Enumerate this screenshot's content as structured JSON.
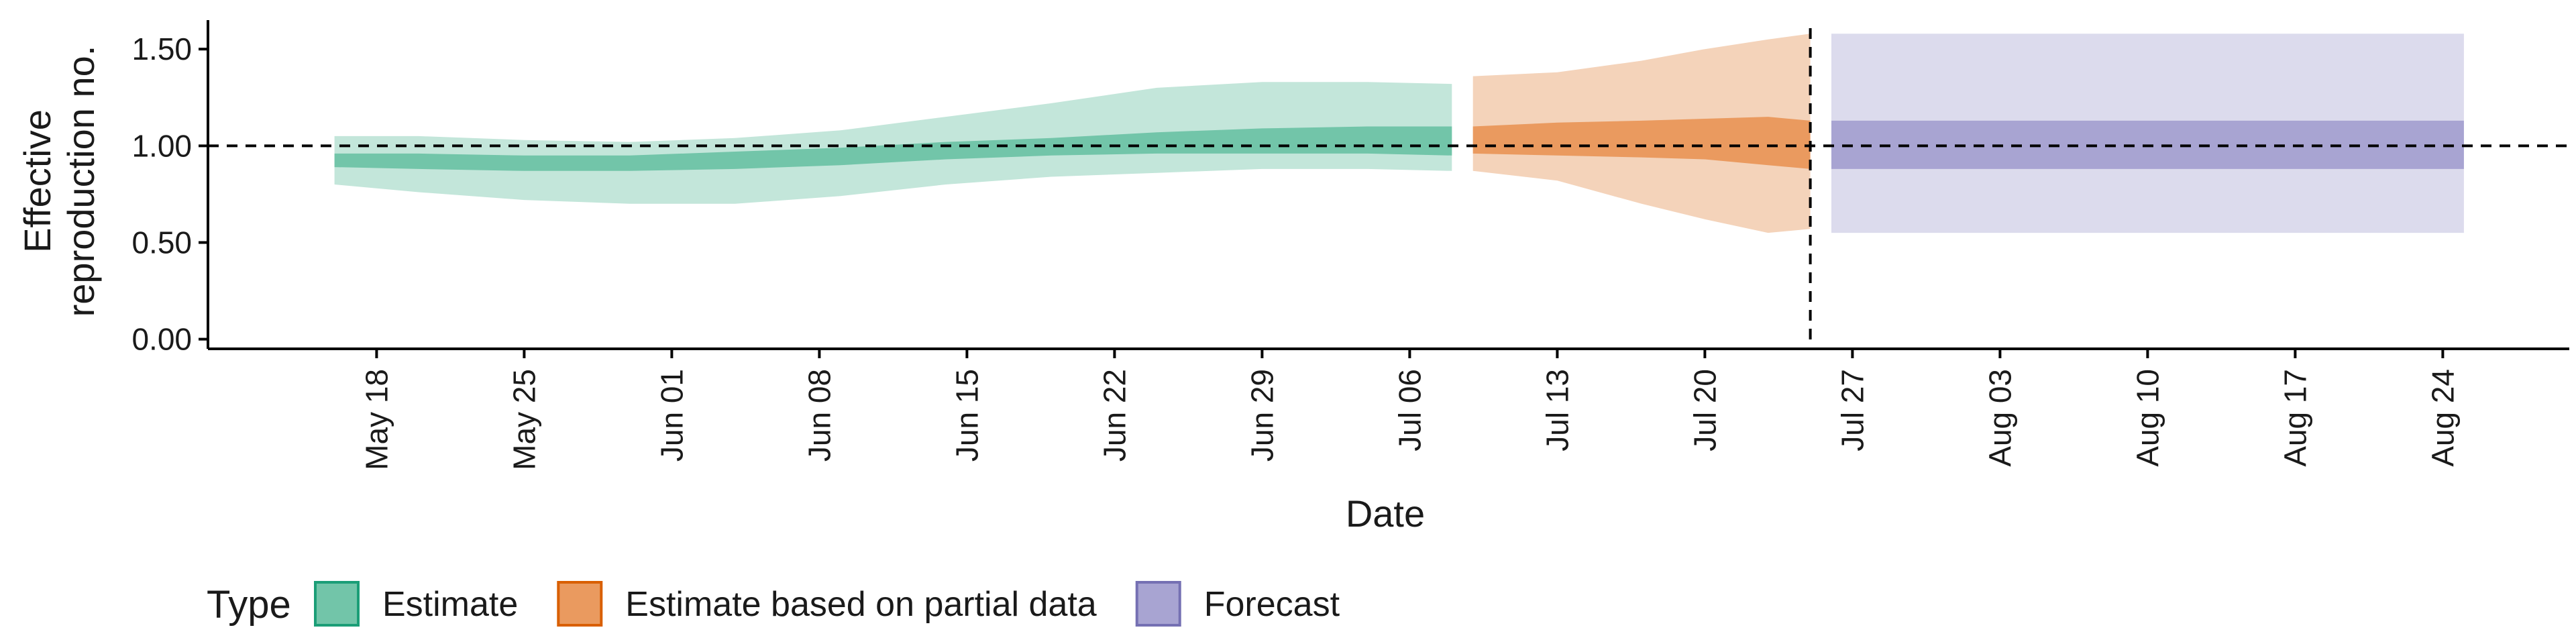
{
  "chart_data": {
    "type": "area",
    "title": "",
    "xlabel": "Date",
    "ylabel_lines": [
      "Effective",
      "reproduction no."
    ],
    "xlim": [
      "2020-05-10",
      "2020-08-30"
    ],
    "ylim": [
      -0.05,
      1.65
    ],
    "x_ticks": [
      {
        "date": "2020-05-18",
        "label": "May 18"
      },
      {
        "date": "2020-05-25",
        "label": "May 25"
      },
      {
        "date": "2020-06-01",
        "label": "Jun 01"
      },
      {
        "date": "2020-06-08",
        "label": "Jun 08"
      },
      {
        "date": "2020-06-15",
        "label": "Jun 15"
      },
      {
        "date": "2020-06-22",
        "label": "Jun 22"
      },
      {
        "date": "2020-06-29",
        "label": "Jun 29"
      },
      {
        "date": "2020-07-06",
        "label": "Jul 06"
      },
      {
        "date": "2020-07-13",
        "label": "Jul 13"
      },
      {
        "date": "2020-07-20",
        "label": "Jul 20"
      },
      {
        "date": "2020-07-27",
        "label": "Jul 27"
      },
      {
        "date": "2020-08-03",
        "label": "Aug 03"
      },
      {
        "date": "2020-08-10",
        "label": "Aug 10"
      },
      {
        "date": "2020-08-17",
        "label": "Aug 17"
      },
      {
        "date": "2020-08-24",
        "label": "Aug 24"
      }
    ],
    "y_ticks": [
      {
        "value": 0.0,
        "label": "0.00"
      },
      {
        "value": 0.5,
        "label": "0.50"
      },
      {
        "value": 1.0,
        "label": "1.00"
      },
      {
        "value": 1.5,
        "label": "1.50"
      }
    ],
    "reference_line": {
      "y": 1.0,
      "style": "dashed"
    },
    "vertical_line": {
      "date": "2020-07-25",
      "style": "dashed"
    },
    "grid": false,
    "legend": {
      "title": "Type",
      "position": "bottom-left",
      "entries": [
        {
          "label": "Estimate",
          "fill": "#72c5a9",
          "border": "#1b9e77"
        },
        {
          "label": "Estimate based on partial data",
          "fill": "#ea9a5f",
          "border": "#d95f02"
        },
        {
          "label": "Forecast",
          "fill": "#a8a4d2",
          "border": "#7570b3"
        }
      ]
    },
    "series": [
      {
        "name": "Estimate",
        "outer_color": "#c3e6da",
        "inner_color": "#72c5a9",
        "points": [
          {
            "date": "2020-05-16",
            "lo90": 0.8,
            "lo50": 0.89,
            "hi50": 0.96,
            "hi90": 1.05
          },
          {
            "date": "2020-05-20",
            "lo90": 0.76,
            "lo50": 0.88,
            "hi50": 0.96,
            "hi90": 1.05
          },
          {
            "date": "2020-05-25",
            "lo90": 0.72,
            "lo50": 0.87,
            "hi50": 0.95,
            "hi90": 1.03
          },
          {
            "date": "2020-05-30",
            "lo90": 0.7,
            "lo50": 0.87,
            "hi50": 0.95,
            "hi90": 1.02
          },
          {
            "date": "2020-06-04",
            "lo90": 0.7,
            "lo50": 0.88,
            "hi50": 0.97,
            "hi90": 1.04
          },
          {
            "date": "2020-06-09",
            "lo90": 0.74,
            "lo50": 0.9,
            "hi50": 0.99,
            "hi90": 1.08
          },
          {
            "date": "2020-06-14",
            "lo90": 0.8,
            "lo50": 0.93,
            "hi50": 1.02,
            "hi90": 1.15
          },
          {
            "date": "2020-06-19",
            "lo90": 0.84,
            "lo50": 0.95,
            "hi50": 1.04,
            "hi90": 1.22
          },
          {
            "date": "2020-06-24",
            "lo90": 0.86,
            "lo50": 0.96,
            "hi50": 1.07,
            "hi90": 1.3
          },
          {
            "date": "2020-06-29",
            "lo90": 0.88,
            "lo50": 0.96,
            "hi50": 1.09,
            "hi90": 1.33
          },
          {
            "date": "2020-07-04",
            "lo90": 0.88,
            "lo50": 0.96,
            "hi50": 1.1,
            "hi90": 1.33
          },
          {
            "date": "2020-07-08",
            "lo90": 0.87,
            "lo50": 0.95,
            "hi50": 1.1,
            "hi90": 1.32
          }
        ]
      },
      {
        "name": "Estimate based on partial data",
        "outer_color": "#f4d3ba",
        "inner_color": "#ea9a5f",
        "points": [
          {
            "date": "2020-07-09",
            "lo90": 0.87,
            "lo50": 0.96,
            "hi50": 1.1,
            "hi90": 1.36
          },
          {
            "date": "2020-07-13",
            "lo90": 0.82,
            "lo50": 0.95,
            "hi50": 1.12,
            "hi90": 1.38
          },
          {
            "date": "2020-07-17",
            "lo90": 0.7,
            "lo50": 0.94,
            "hi50": 1.13,
            "hi90": 1.44
          },
          {
            "date": "2020-07-20",
            "lo90": 0.62,
            "lo50": 0.93,
            "hi50": 1.14,
            "hi90": 1.5
          },
          {
            "date": "2020-07-23",
            "lo90": 0.55,
            "lo50": 0.9,
            "hi50": 1.15,
            "hi90": 1.55
          },
          {
            "date": "2020-07-25",
            "lo90": 0.57,
            "lo50": 0.88,
            "hi50": 1.13,
            "hi90": 1.58
          }
        ]
      },
      {
        "name": "Forecast",
        "outer_color": "#dcdbed",
        "inner_color": "#a8a4d2",
        "points": [
          {
            "date": "2020-07-26",
            "lo90": 0.55,
            "lo50": 0.88,
            "hi50": 1.13,
            "hi90": 1.58
          },
          {
            "date": "2020-08-25",
            "lo90": 0.55,
            "lo50": 0.88,
            "hi50": 1.13,
            "hi90": 1.58
          }
        ]
      }
    ]
  }
}
